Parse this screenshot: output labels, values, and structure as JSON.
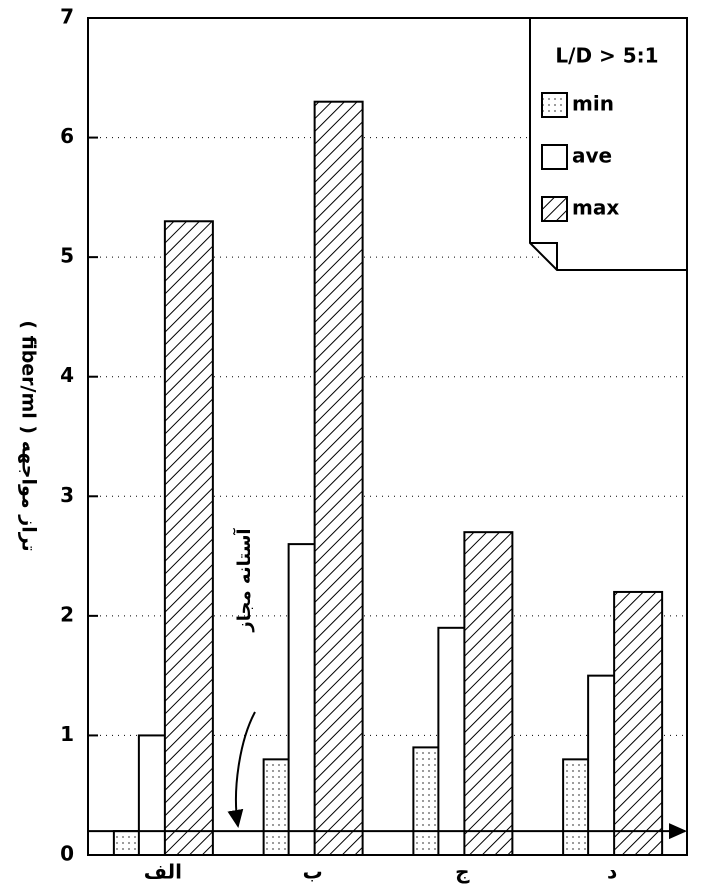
{
  "chart_data": {
    "type": "bar",
    "ylabel": "( fiber/ml ) تراز مواجهه",
    "categories": [
      "الف",
      "ب",
      "ج",
      "د"
    ],
    "series": [
      {
        "name": "min",
        "values": [
          0.2,
          0.8,
          0.9,
          0.8
        ]
      },
      {
        "name": "ave",
        "values": [
          1.0,
          2.6,
          1.9,
          1.5
        ]
      },
      {
        "name": "max",
        "values": [
          5.3,
          6.3,
          2.7,
          2.2
        ]
      }
    ],
    "legend_title": "L/D > 5:1",
    "legend_position": "upper right",
    "annotation": {
      "text": "آستانه مجاز",
      "value": 0.2
    },
    "ylim": [
      0,
      7
    ],
    "yticks": [
      0,
      1,
      2,
      3,
      4,
      5,
      6,
      7
    ],
    "grid": true
  }
}
